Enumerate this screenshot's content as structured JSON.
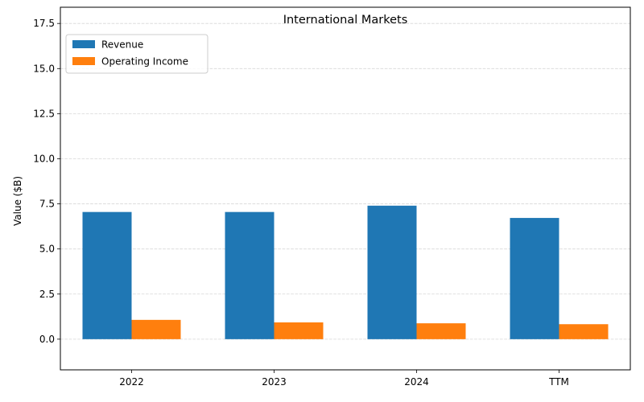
{
  "chart_data": {
    "type": "bar",
    "title": "International Markets",
    "xlabel": "",
    "ylabel": "Value ($B)",
    "categories": [
      "2022",
      "2023",
      "2024",
      "TTM"
    ],
    "series": [
      {
        "name": "Revenue",
        "color": "#1f77b4",
        "values": [
          7.05,
          7.05,
          7.4,
          6.72
        ]
      },
      {
        "name": "Operating Income",
        "color": "#ff7f0e",
        "values": [
          1.07,
          0.93,
          0.88,
          0.83
        ]
      }
    ],
    "ylim": [
      -1.7,
      18.4
    ],
    "yticks": [
      0.0,
      2.5,
      5.0,
      7.5,
      10.0,
      12.5,
      15.0,
      17.5
    ],
    "ytick_labels": [
      "0.0",
      "2.5",
      "5.0",
      "7.5",
      "10.0",
      "12.5",
      "15.0",
      "17.5"
    ],
    "grid": "y-dashed",
    "legend": "top-left"
  }
}
